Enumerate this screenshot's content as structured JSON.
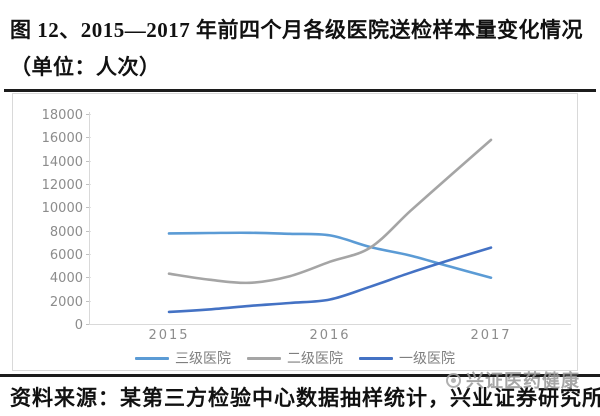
{
  "figure": {
    "title": "图 12、2015—2017 年前四个月各级医院送检样本量变化情况（单位：人次）",
    "source": "资料来源：某第三方检验中心数据抽样统计，兴业证券研究所",
    "watermark": "兴证医药健康"
  },
  "chart_data": {
    "type": "line",
    "title": "",
    "xlabel": "",
    "ylabel": "",
    "categories": [
      "2015",
      "2016",
      "2017"
    ],
    "series": [
      {
        "id": "tertiary",
        "name": "三级医院",
        "color": "#5B9BD5",
        "values": [
          7800,
          7600,
          4000
        ]
      },
      {
        "id": "secondary",
        "name": "二级医院",
        "color": "#A5A5A5",
        "values": [
          4300,
          5300,
          15800
        ]
      },
      {
        "id": "primary",
        "name": "一级医院",
        "color": "#4472C4",
        "values": [
          1000,
          2100,
          6500
        ]
      }
    ],
    "ylim": [
      0,
      18000
    ],
    "ytick_step": 2000,
    "yticks": [
      0,
      2000,
      4000,
      6000,
      8000,
      10000,
      12000,
      14000,
      16000,
      18000
    ],
    "grid": false,
    "smooth": true,
    "legend_position": "bottom",
    "axis_color": "#d9d9d9",
    "tick_color": "#c0c0c0",
    "tick_label_color": "#8c8c8c",
    "render_samples": {
      "t": [
        0,
        0.125,
        0.25,
        0.375,
        0.5,
        0.625,
        0.75,
        0.875,
        1
      ],
      "values": {
        "三级医院": [
          7760,
          7800,
          7820,
          7730,
          7590,
          6600,
          5860,
          4900,
          3970
        ],
        "二级医院": [
          4310,
          3800,
          3530,
          4100,
          5340,
          6550,
          9700,
          12760,
          15780
        ],
        "一级医院": [
          1030,
          1250,
          1550,
          1800,
          2100,
          3200,
          4400,
          5500,
          6550
        ]
      }
    }
  }
}
